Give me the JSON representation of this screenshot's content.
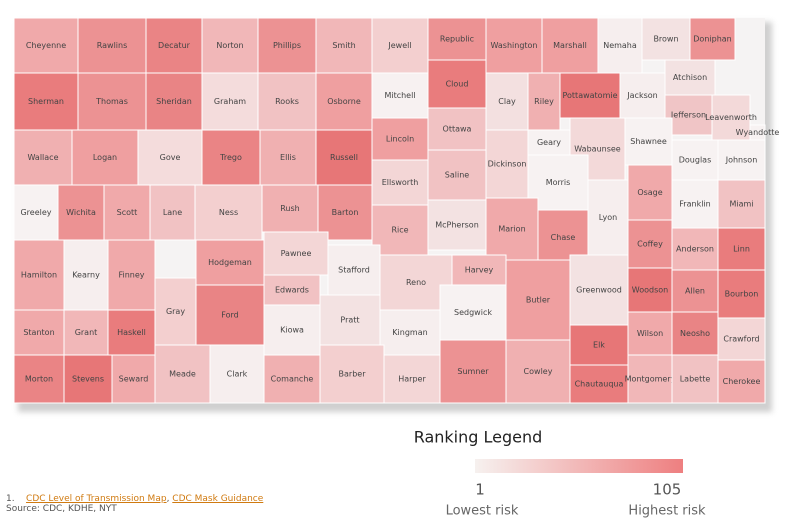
{
  "map": {
    "counties": [
      {
        "name": "Cheyenne",
        "color": "#f0a9aa"
      },
      {
        "name": "Rawlins",
        "color": "#ec9293"
      },
      {
        "name": "Decatur",
        "color": "#ea8485"
      },
      {
        "name": "Norton",
        "color": "#f1b7b8"
      },
      {
        "name": "Phillips",
        "color": "#ec9293"
      },
      {
        "name": "Smith",
        "color": "#f1b7b8"
      },
      {
        "name": "Jewell",
        "color": "#f3cfcf"
      },
      {
        "name": "Republic",
        "color": "#ec9293"
      },
      {
        "name": "Washington",
        "color": "#ef9fa0"
      },
      {
        "name": "Marshall",
        "color": "#ef9fa0"
      },
      {
        "name": "Nemaha",
        "color": "#f6eeee"
      },
      {
        "name": "Brown",
        "color": "#f3e2e2"
      },
      {
        "name": "Doniphan",
        "color": "#ec9293"
      },
      {
        "name": "Sherman",
        "color": "#e97c7d"
      },
      {
        "name": "Thomas",
        "color": "#ec9293"
      },
      {
        "name": "Sheridan",
        "color": "#e98485"
      },
      {
        "name": "Graham",
        "color": "#f4dcdc"
      },
      {
        "name": "Rooks",
        "color": "#f1c2c3"
      },
      {
        "name": "Osborne",
        "color": "#ef9fa0"
      },
      {
        "name": "Mitchell",
        "color": "#f7f1f1"
      },
      {
        "name": "Cloud",
        "color": "#e97c7d"
      },
      {
        "name": "Clay",
        "color": "#f3e0e0"
      },
      {
        "name": "Riley",
        "color": "#f0b0b1"
      },
      {
        "name": "Pottawatomie",
        "color": "#e77677"
      },
      {
        "name": "Jackson",
        "color": "#f6eeee"
      },
      {
        "name": "Atchison",
        "color": "#f3e2e2"
      },
      {
        "name": "Jefferson",
        "color": "#f0c5c6"
      },
      {
        "name": "Leavenworth",
        "color": "#f3d9d9"
      },
      {
        "name": "Wallace",
        "color": "#f0b0b1"
      },
      {
        "name": "Logan",
        "color": "#ef9fa0"
      },
      {
        "name": "Gove",
        "color": "#f4dcdc"
      },
      {
        "name": "Trego",
        "color": "#ea8485"
      },
      {
        "name": "Ellis",
        "color": "#f0b0b1"
      },
      {
        "name": "Russell",
        "color": "#e77677"
      },
      {
        "name": "Lincoln",
        "color": "#ef9fa0"
      },
      {
        "name": "Ottawa",
        "color": "#f1c2c3"
      },
      {
        "name": "Dickinson",
        "color": "#f3d6d6"
      },
      {
        "name": "Geary",
        "color": "#f7f2f2"
      },
      {
        "name": "Wabaunsee",
        "color": "#f3d9d9"
      },
      {
        "name": "Shawnee",
        "color": "#f7f2f2"
      },
      {
        "name": "Douglas",
        "color": "#f7f2f2"
      },
      {
        "name": "Wyandotte",
        "color": "#f7f2f2"
      },
      {
        "name": "Johnson",
        "color": "#f7f2f2"
      },
      {
        "name": "Greeley",
        "color": "#f7f2f2"
      },
      {
        "name": "Wichita",
        "color": "#ec9293"
      },
      {
        "name": "Scott",
        "color": "#f0a9aa"
      },
      {
        "name": "Lane",
        "color": "#f1c2c3"
      },
      {
        "name": "Ness",
        "color": "#f3cfcf"
      },
      {
        "name": "Rush",
        "color": "#f0b0b1"
      },
      {
        "name": "Barton",
        "color": "#ec9293"
      },
      {
        "name": "Ellsworth",
        "color": "#f3d6d6"
      },
      {
        "name": "Saline",
        "color": "#f1c2c3"
      },
      {
        "name": "Morris",
        "color": "#f7f2f2"
      },
      {
        "name": "Osage",
        "color": "#f0a9aa"
      },
      {
        "name": "Franklin",
        "color": "#f7f2f2"
      },
      {
        "name": "Miami",
        "color": "#f1c2c3"
      },
      {
        "name": "McPherson",
        "color": "#f3e2e2"
      },
      {
        "name": "Marion",
        "color": "#f0a9aa"
      },
      {
        "name": "Chase",
        "color": "#ec9293"
      },
      {
        "name": "Lyon",
        "color": "#f6eeee"
      },
      {
        "name": "Rice",
        "color": "#f1b7b8"
      },
      {
        "name": "Hamilton",
        "color": "#f0a9aa"
      },
      {
        "name": "Kearny",
        "color": "#f6eeee"
      },
      {
        "name": "Finney",
        "color": "#f0a9aa"
      },
      {
        "name": "Hodgeman",
        "color": "#ef9fa0"
      },
      {
        "name": "Pawnee",
        "color": "#f3d6d6"
      },
      {
        "name": "Edwards",
        "color": "#f1c2c3"
      },
      {
        "name": "Stafford",
        "color": "#f6eeee"
      },
      {
        "name": "Reno",
        "color": "#f3d6d6"
      },
      {
        "name": "Harvey",
        "color": "#f1b7b8"
      },
      {
        "name": "Butler",
        "color": "#ef9fa0"
      },
      {
        "name": "Greenwood",
        "color": "#f3e2e2"
      },
      {
        "name": "Coffey",
        "color": "#ec9293"
      },
      {
        "name": "Anderson",
        "color": "#f1b7b8"
      },
      {
        "name": "Linn",
        "color": "#e97c7d"
      },
      {
        "name": "Woodson",
        "color": "#e77677"
      },
      {
        "name": "Allen",
        "color": "#ec9293"
      },
      {
        "name": "Bourbon",
        "color": "#e97c7d"
      },
      {
        "name": "Gray",
        "color": "#f3cfcf"
      },
      {
        "name": "Ford",
        "color": "#e98485"
      },
      {
        "name": "Kiowa",
        "color": "#f6eeee"
      },
      {
        "name": "Pratt",
        "color": "#f3e2e2"
      },
      {
        "name": "Kingman",
        "color": "#f6eeee"
      },
      {
        "name": "Sedgwick",
        "color": "#f7f2f2"
      },
      {
        "name": "Stanton",
        "color": "#f0a9aa"
      },
      {
        "name": "Grant",
        "color": "#f1b7b8"
      },
      {
        "name": "Haskell",
        "color": "#e97c7d"
      },
      {
        "name": "Wilson",
        "color": "#f0a9aa"
      },
      {
        "name": "Neosho",
        "color": "#e98485"
      },
      {
        "name": "Crawford",
        "color": "#f3d6d6"
      },
      {
        "name": "Elk",
        "color": "#e77677"
      },
      {
        "name": "Morton",
        "color": "#ea8485"
      },
      {
        "name": "Stevens",
        "color": "#e77677"
      },
      {
        "name": "Seward",
        "color": "#f0a9aa"
      },
      {
        "name": "Meade",
        "color": "#f1c2c3"
      },
      {
        "name": "Clark",
        "color": "#f6eeee"
      },
      {
        "name": "Comanche",
        "color": "#f0b0b1"
      },
      {
        "name": "Barber",
        "color": "#f3cfcf"
      },
      {
        "name": "Harper",
        "color": "#f3d6d6"
      },
      {
        "name": "Sumner",
        "color": "#ec9293"
      },
      {
        "name": "Cowley",
        "color": "#f0b0b1"
      },
      {
        "name": "Chautauqua",
        "color": "#e97c7d"
      },
      {
        "name": "Montgomery",
        "color": "#f1b7b8"
      },
      {
        "name": "Labette",
        "color": "#f1c2c3"
      },
      {
        "name": "Cherokee",
        "color": "#f0a9aa"
      }
    ],
    "legend": {
      "title": "Ranking Legend",
      "min": 1,
      "max": 105,
      "min_label": "Lowest risk",
      "max_label": "Highest risk",
      "colors": [
        "#f6f1ef",
        "#ee7f80"
      ]
    }
  },
  "footnote": {
    "number": "1.",
    "links": [
      "CDC Level of Transmission Map",
      "CDC Mask Guidance"
    ],
    "separator": ", ",
    "source": "Source: CDC, KDHE, NYT"
  }
}
